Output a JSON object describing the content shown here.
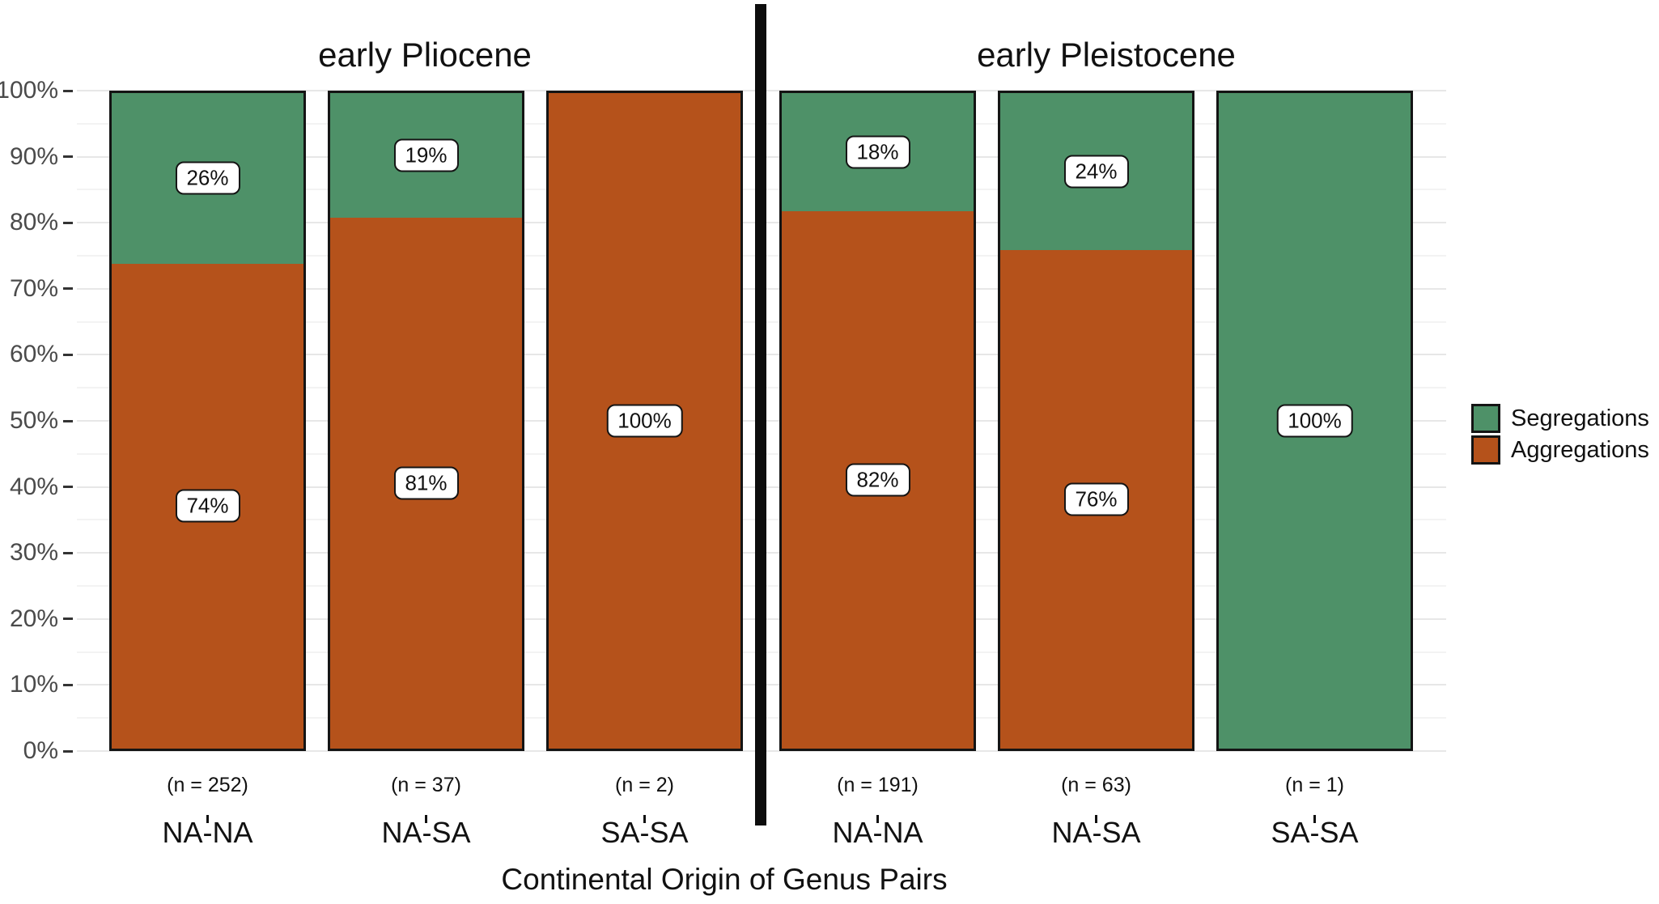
{
  "chart_data": {
    "type": "bar",
    "variant": "stacked-percent",
    "ylim": [
      0,
      100
    ],
    "y_ticks": [
      "0%",
      "10%",
      "20%",
      "30%",
      "40%",
      "50%",
      "60%",
      "70%",
      "80%",
      "90%",
      "100%"
    ],
    "grid": "horizontal major every 10%, minor every 5%",
    "xlabel": "Continental Origin of Genus Pairs",
    "legend_position": "right-center",
    "panels": [
      {
        "title": "early Pliocene",
        "bars": [
          {
            "category": "NA-NA",
            "n_label": "(n = 252)",
            "segments": [
              {
                "series": "Segregations",
                "value": 26,
                "label": "26%"
              },
              {
                "series": "Aggregations",
                "value": 74,
                "label": "74%"
              }
            ]
          },
          {
            "category": "NA-SA",
            "n_label": "(n = 37)",
            "segments": [
              {
                "series": "Segregations",
                "value": 19,
                "label": "19%"
              },
              {
                "series": "Aggregations",
                "value": 81,
                "label": "81%"
              }
            ]
          },
          {
            "category": "SA-SA",
            "n_label": "(n = 2)",
            "segments": [
              {
                "series": "Aggregations",
                "value": 100,
                "label": "100%"
              }
            ]
          }
        ]
      },
      {
        "title": "early Pleistocene",
        "bars": [
          {
            "category": "NA-NA",
            "n_label": "(n = 191)",
            "segments": [
              {
                "series": "Segregations",
                "value": 18,
                "label": "18%"
              },
              {
                "series": "Aggregations",
                "value": 82,
                "label": "82%"
              }
            ]
          },
          {
            "category": "NA-SA",
            "n_label": "(n = 63)",
            "segments": [
              {
                "series": "Segregations",
                "value": 24,
                "label": "24%"
              },
              {
                "series": "Aggregations",
                "value": 76,
                "label": "76%"
              }
            ]
          },
          {
            "category": "SA-SA",
            "n_label": "(n = 1)",
            "segments": [
              {
                "series": "Segregations",
                "value": 100,
                "label": "100%"
              }
            ]
          }
        ]
      }
    ],
    "legend": [
      {
        "label": "Segregations",
        "color": "#4e9168"
      },
      {
        "label": "Aggregations",
        "color": "#b5521b"
      }
    ],
    "colors": {
      "segregations": "#4e9168",
      "aggregations": "#b5521b",
      "bar_border": "#141414",
      "axis_text": "#4a4a4a",
      "divider": "#0d0d0d",
      "grid_major": "#e7e7e7",
      "grid_minor": "#f3f3f3"
    }
  }
}
